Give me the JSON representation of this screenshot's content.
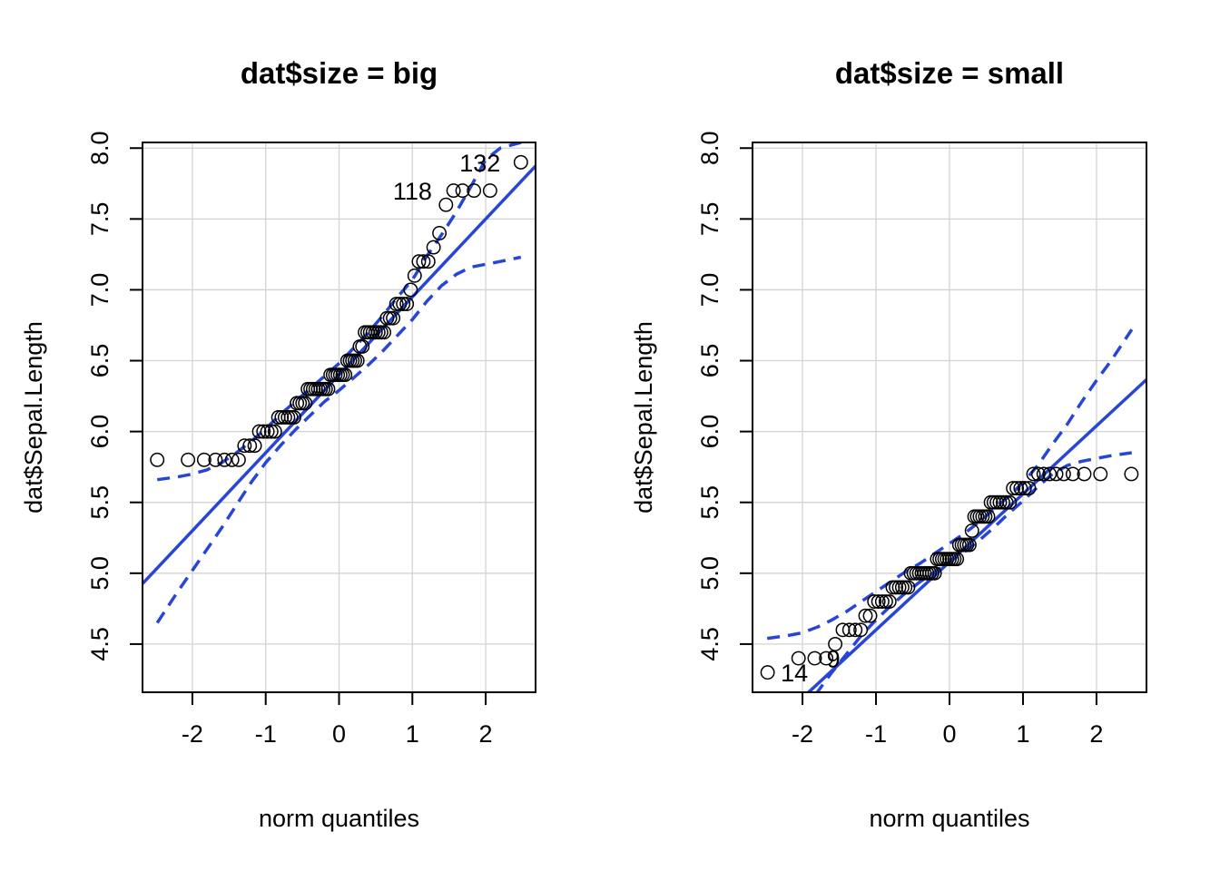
{
  "chart_data": [
    {
      "type": "scatter",
      "title": "dat$size = big",
      "xlabel": "norm quantiles",
      "ylabel": "dat$Sepal.Length",
      "xlim": [
        -2.68,
        2.68
      ],
      "ylim": [
        4.16,
        8.04
      ],
      "xticks": [
        -2,
        -1,
        0,
        1,
        2
      ],
      "xtick_labels": [
        "-2",
        "-1",
        "0",
        "1",
        "2"
      ],
      "yticks": [
        4.5,
        5.0,
        5.5,
        6.0,
        6.5,
        7.0,
        7.5,
        8.0
      ],
      "ytick_labels": [
        "4.5",
        "5.0",
        "5.5",
        "6.0",
        "6.5",
        "7.0",
        "7.5",
        "8.0"
      ],
      "grid": true,
      "points_y": [
        5.8,
        5.8,
        5.8,
        5.8,
        5.8,
        5.8,
        5.8,
        5.9,
        5.9,
        5.9,
        6.0,
        6.0,
        6.0,
        6.0,
        6.0,
        6.1,
        6.1,
        6.1,
        6.1,
        6.1,
        6.1,
        6.2,
        6.2,
        6.2,
        6.2,
        6.3,
        6.3,
        6.3,
        6.3,
        6.3,
        6.3,
        6.3,
        6.3,
        6.3,
        6.4,
        6.4,
        6.4,
        6.4,
        6.4,
        6.4,
        6.4,
        6.5,
        6.5,
        6.5,
        6.5,
        6.5,
        6.6,
        6.6,
        6.7,
        6.7,
        6.7,
        6.7,
        6.7,
        6.7,
        6.7,
        6.7,
        6.8,
        6.8,
        6.8,
        6.9,
        6.9,
        6.9,
        6.9,
        7.0,
        7.1,
        7.2,
        7.2,
        7.2,
        7.3,
        7.4,
        7.6,
        7.7,
        7.7,
        7.7,
        7.7,
        7.9
      ],
      "fit_line": {
        "intercept": 6.4,
        "slope": 0.55
      },
      "envelope": {
        "x": [
          -2.48,
          -2.2,
          -2.0,
          -1.8,
          -1.6,
          -1.4,
          -1.2,
          -1.0,
          -0.8,
          -0.6,
          -0.4,
          -0.2,
          0,
          0.2,
          0.4,
          0.6,
          0.8,
          1.0,
          1.2,
          1.4,
          1.6,
          1.8,
          2.0,
          2.2,
          2.48
        ],
        "lower": [
          4.65,
          4.87,
          5.02,
          5.17,
          5.32,
          5.48,
          5.64,
          5.78,
          5.9,
          6.01,
          6.11,
          6.21,
          6.29,
          6.38,
          6.47,
          6.57,
          6.68,
          6.79,
          6.92,
          7.03,
          7.11,
          7.16,
          7.18,
          7.2,
          7.23
        ],
        "upper": [
          5.66,
          5.68,
          5.7,
          5.73,
          5.78,
          5.85,
          5.93,
          6.02,
          6.12,
          6.21,
          6.3,
          6.39,
          6.48,
          6.59,
          6.7,
          6.82,
          6.95,
          7.07,
          7.24,
          7.39,
          7.55,
          7.73,
          7.92,
          8.0,
          8.04
        ]
      },
      "point_labels": [
        {
          "text": "132",
          "x": 2.07,
          "y": 7.9
        },
        {
          "text": "118",
          "x": 1.15,
          "y": 7.7
        }
      ],
      "colors": {
        "fit": "#2846d6",
        "points": "#000000",
        "grid": "#d3d3d3"
      }
    },
    {
      "type": "scatter",
      "title": "dat$size = small",
      "xlabel": "norm quantiles",
      "ylabel": "dat$Sepal.Length",
      "xlim": [
        -2.68,
        2.68
      ],
      "ylim": [
        4.16,
        8.04
      ],
      "xticks": [
        -2,
        -1,
        0,
        1,
        2
      ],
      "xtick_labels": [
        "-2",
        "-1",
        "0",
        "1",
        "2"
      ],
      "yticks": [
        4.5,
        5.0,
        5.5,
        6.0,
        6.5,
        7.0,
        7.5,
        8.0
      ],
      "ytick_labels": [
        "4.5",
        "5.0",
        "5.5",
        "6.0",
        "6.5",
        "7.0",
        "7.5",
        "8.0"
      ],
      "grid": true,
      "points_y": [
        4.3,
        4.4,
        4.4,
        4.4,
        4.5,
        4.6,
        4.6,
        4.6,
        4.6,
        4.7,
        4.7,
        4.8,
        4.8,
        4.8,
        4.8,
        4.8,
        4.9,
        4.9,
        4.9,
        4.9,
        4.9,
        4.9,
        5.0,
        5.0,
        5.0,
        5.0,
        5.0,
        5.0,
        5.0,
        5.0,
        5.0,
        5.0,
        5.1,
        5.1,
        5.1,
        5.1,
        5.1,
        5.1,
        5.1,
        5.1,
        5.1,
        5.2,
        5.2,
        5.2,
        5.2,
        5.2,
        5.3,
        5.4,
        5.4,
        5.4,
        5.4,
        5.4,
        5.4,
        5.5,
        5.5,
        5.5,
        5.5,
        5.5,
        5.5,
        5.5,
        5.6,
        5.6,
        5.6,
        5.6,
        5.6,
        5.7,
        5.7,
        5.7,
        5.7,
        5.7,
        5.7,
        5.7,
        5.7,
        5.7,
        5.7
      ],
      "fit_line": {
        "intercept": 5.08,
        "slope": 0.48
      },
      "envelope": {
        "x": [
          -2.48,
          -2.2,
          -2.0,
          -1.8,
          -1.6,
          -1.4,
          -1.2,
          -1.0,
          -0.8,
          -0.6,
          -0.4,
          -0.2,
          0,
          0.2,
          0.4,
          0.6,
          0.8,
          1.0,
          1.2,
          1.4,
          1.6,
          1.8,
          2.0,
          2.2,
          2.48
        ],
        "lower": [
          3.66,
          3.87,
          4.02,
          4.16,
          4.3,
          4.43,
          4.56,
          4.67,
          4.77,
          4.86,
          4.94,
          5.01,
          5.08,
          5.15,
          5.23,
          5.32,
          5.42,
          5.51,
          5.61,
          5.7,
          5.76,
          5.79,
          5.81,
          5.83,
          5.85
        ],
        "upper": [
          4.54,
          4.56,
          4.58,
          4.62,
          4.67,
          4.73,
          4.8,
          4.87,
          4.94,
          5.01,
          5.07,
          5.14,
          5.21,
          5.28,
          5.36,
          5.45,
          5.54,
          5.64,
          5.76,
          5.91,
          6.05,
          6.21,
          6.36,
          6.5,
          6.72
        ]
      },
      "point_labels": [
        {
          "text": "14",
          "x": -2.48,
          "y": 4.3
        },
        {
          "text": "9",
          "x": -1.95,
          "y": 4.4
        }
      ],
      "colors": {
        "fit": "#2846d6",
        "points": "#000000",
        "grid": "#d3d3d3"
      }
    }
  ]
}
